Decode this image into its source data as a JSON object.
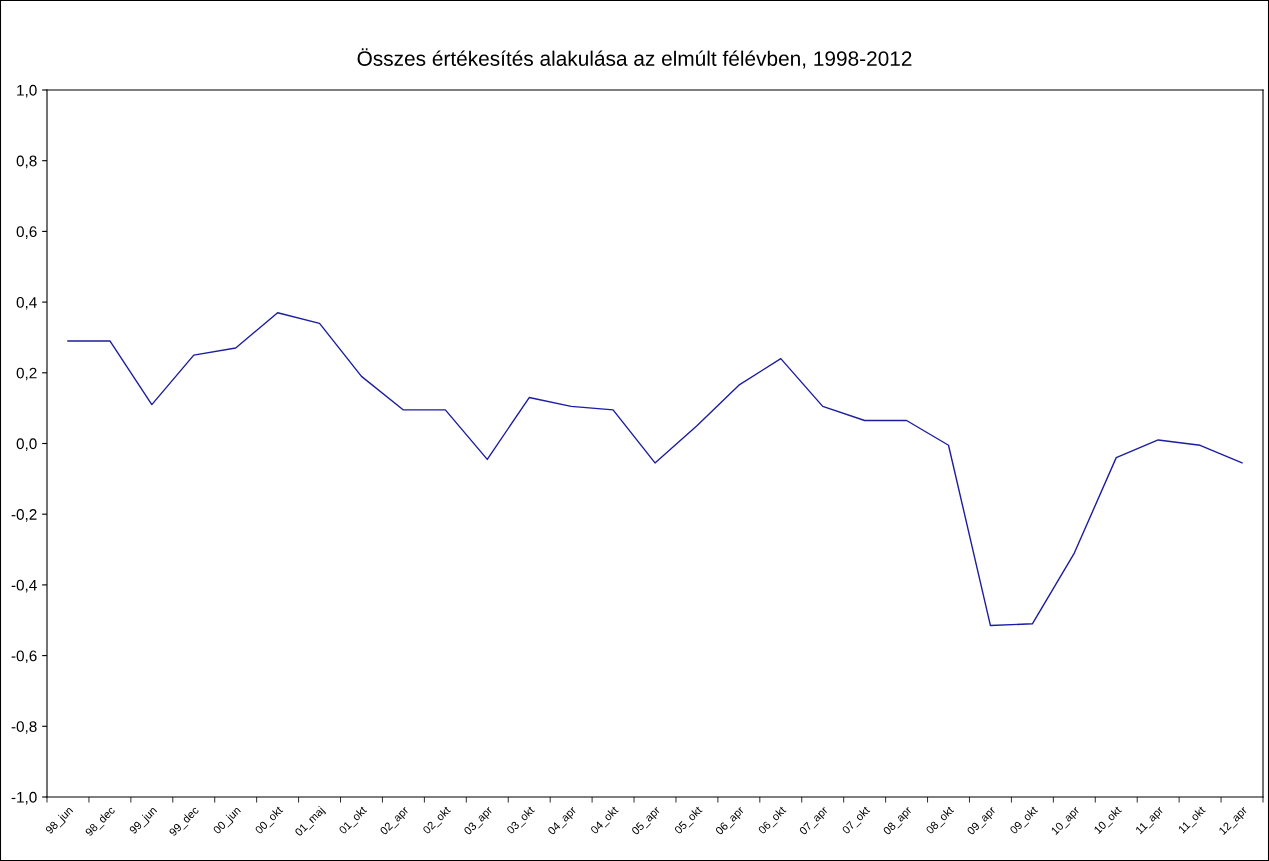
{
  "chart_data": {
    "type": "line",
    "title": "Összes értékesítés alakulása az elmúlt félévben, 1998-2012",
    "categories": [
      "98_jun",
      "98_dec",
      "99_jun",
      "99_dec",
      "00_jun",
      "00_okt",
      "01_maj",
      "01_okt",
      "02_apr",
      "02_okt",
      "03_apr",
      "03_okt",
      "04_apr",
      "04_okt",
      "05_apr",
      "05_okt",
      "06_apr",
      "06_okt",
      "07_apr",
      "07_okt",
      "08_apr",
      "08_okt",
      "09_apr",
      "09_okt",
      "10_apr",
      "10_okt",
      "11_apr",
      "11_okt",
      "12_apr"
    ],
    "series": [
      {
        "color": "#1c1ca0",
        "values": [
          0.29,
          0.29,
          0.11,
          0.25,
          0.27,
          0.37,
          0.34,
          0.19,
          0.095,
          0.095,
          -0.045,
          0.13,
          0.105,
          0.095,
          -0.055,
          0.05,
          0.165,
          0.24,
          0.105,
          0.065,
          0.065,
          -0.005,
          -0.515,
          -0.51,
          -0.31,
          -0.04,
          0.01,
          -0.005,
          -0.055
        ]
      }
    ],
    "ylim": [
      -1.0,
      1.0
    ],
    "yticks": [
      {
        "value": -1.0,
        "label": "-1,0"
      },
      {
        "value": -0.8,
        "label": "-0,8"
      },
      {
        "value": -0.6,
        "label": "-0,6"
      },
      {
        "value": -0.4,
        "label": "-0,4"
      },
      {
        "value": -0.2,
        "label": "-0,2"
      },
      {
        "value": 0.0,
        "label": "0,0"
      },
      {
        "value": 0.2,
        "label": "0,2"
      },
      {
        "value": 0.4,
        "label": "0,4"
      },
      {
        "value": 0.6,
        "label": "0,6"
      },
      {
        "value": 0.8,
        "label": "0,8"
      },
      {
        "value": 1.0,
        "label": "1,0"
      }
    ],
    "grid": false,
    "legend": false,
    "marker": "none",
    "line_style": "solid"
  }
}
